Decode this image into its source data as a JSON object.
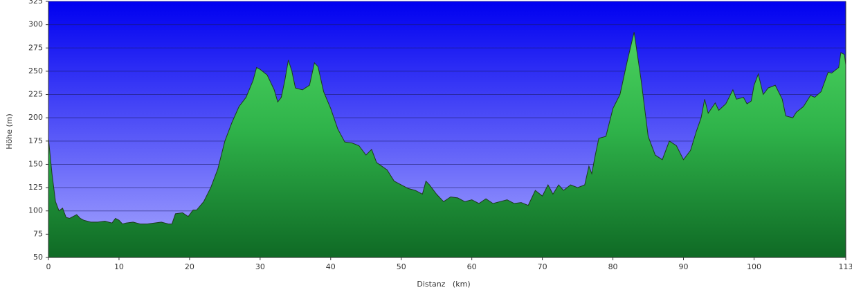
{
  "chart_data": {
    "type": "area",
    "xlabel": "Distanz   (km)",
    "ylabel": "Höhe (m)",
    "x": [
      0,
      0.5,
      1,
      1.5,
      2,
      2.5,
      3,
      4,
      4.5,
      5,
      6,
      7,
      8,
      9,
      9.5,
      10,
      10.5,
      11,
      12,
      13,
      14,
      15,
      16,
      17,
      17.5,
      18,
      19,
      19.8,
      20.5,
      21,
      22,
      23,
      24,
      25,
      26,
      27,
      28,
      29,
      29.5,
      30,
      31,
      32,
      32.5,
      33,
      33.5,
      34,
      34.5,
      35,
      36,
      37,
      37.7,
      38.2,
      39,
      40,
      41,
      42,
      43,
      44,
      45,
      45.8,
      46.5,
      48,
      49,
      50,
      51,
      52,
      53,
      53.5,
      54,
      55,
      56,
      57,
      58,
      59,
      60,
      61,
      62,
      63,
      64,
      65,
      66,
      67,
      68,
      69,
      70,
      70.8,
      71.5,
      72.3,
      73,
      74,
      75,
      76,
      76.6,
      77,
      77.5,
      78,
      79,
      80,
      81,
      82,
      83,
      84,
      85,
      86,
      87,
      88,
      89,
      90,
      91,
      91.8,
      92.5,
      93,
      93.5,
      94.5,
      95,
      96,
      97,
      97.5,
      98.5,
      99,
      99.6,
      100,
      100.6,
      101.3,
      102,
      103,
      104,
      104.5,
      105.5,
      106,
      107,
      108,
      108.6,
      109.5,
      110.5,
      111,
      112,
      112.3,
      112.8,
      113
    ],
    "values": [
      178,
      140,
      110,
      100,
      103,
      93,
      92,
      96,
      92,
      90,
      88,
      88,
      89,
      87,
      92,
      90,
      86,
      87,
      88,
      86,
      86,
      87,
      88,
      86,
      86,
      97,
      98,
      94,
      101,
      101,
      110,
      125,
      145,
      175,
      195,
      212,
      222,
      240,
      254,
      252,
      246,
      230,
      217,
      222,
      240,
      262,
      250,
      232,
      230,
      235,
      259,
      255,
      228,
      210,
      188,
      174,
      173,
      170,
      160,
      166,
      152,
      144,
      132,
      128,
      124,
      122,
      118,
      132,
      128,
      118,
      110,
      115,
      114,
      110,
      112,
      108,
      113,
      108,
      110,
      112,
      108,
      109,
      106,
      122,
      116,
      128,
      118,
      128,
      122,
      128,
      125,
      128,
      148,
      140,
      160,
      178,
      180,
      210,
      225,
      260,
      292,
      240,
      180,
      160,
      155,
      175,
      170,
      155,
      165,
      185,
      200,
      220,
      205,
      216,
      208,
      215,
      230,
      220,
      222,
      215,
      218,
      235,
      247,
      225,
      232,
      235,
      220,
      202,
      200,
      206,
      212,
      224,
      222,
      228,
      249,
      248,
      254,
      270,
      268,
      257
    ],
    "color": "#22a63c",
    "xlim": [
      0,
      113
    ],
    "xticks": [
      0,
      10,
      20,
      30,
      40,
      50,
      60,
      70,
      80,
      90,
      100,
      113
    ],
    "ylim": [
      50,
      325
    ],
    "yticks": [
      50,
      75,
      100,
      125,
      150,
      175,
      200,
      225,
      250,
      275,
      300,
      325
    ],
    "grid": true
  }
}
